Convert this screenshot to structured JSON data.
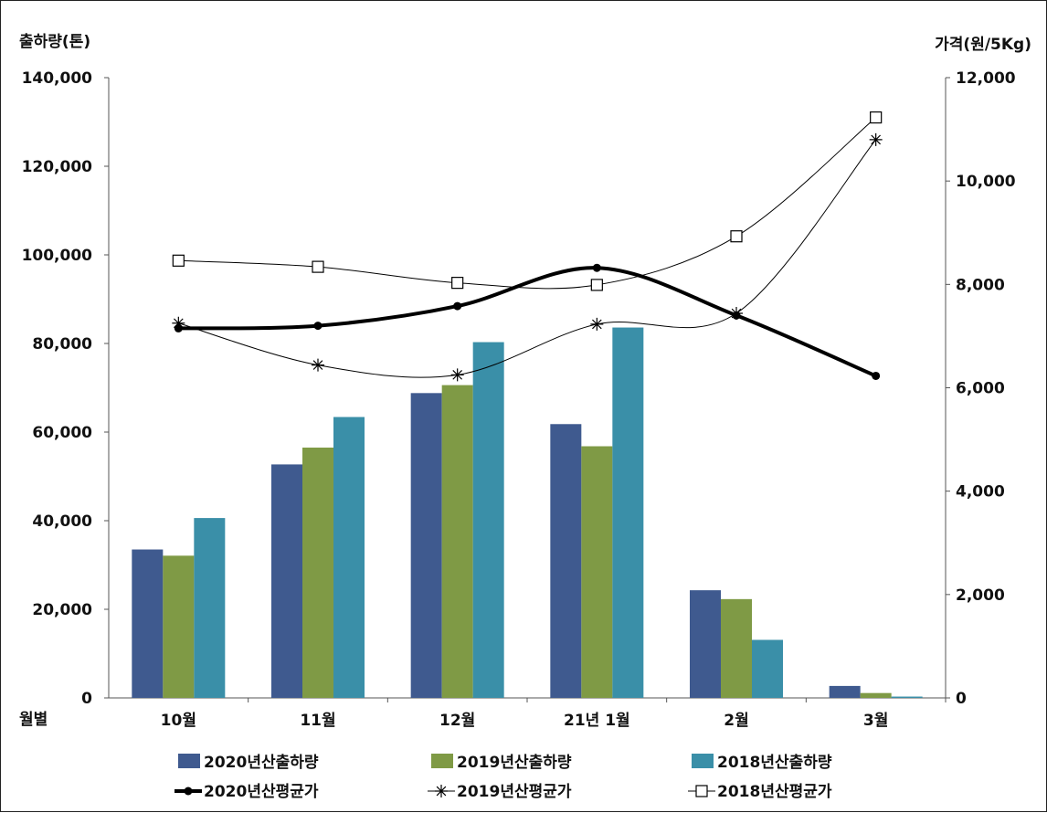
{
  "chart_data": {
    "type": "bar",
    "categories": [
      "10월",
      "11월",
      "12월",
      "21년 1월",
      "2월",
      "3월"
    ],
    "x_axis_label": "월별",
    "y_left": {
      "label": "출하량(톤)",
      "ylim": [
        0,
        140000
      ],
      "ticks": [
        "0",
        "20,000",
        "40,000",
        "60,000",
        "80,000",
        "100,000",
        "120,000",
        "140,000"
      ],
      "tick_values": [
        0,
        20000,
        40000,
        60000,
        80000,
        100000,
        120000,
        140000
      ]
    },
    "y_right": {
      "label": "가격(원/5Kg)",
      "ylim": [
        0,
        12000
      ],
      "ticks": [
        "0",
        "2,000",
        "4,000",
        "6,000",
        "8,000",
        "10,000",
        "12,000"
      ],
      "tick_values": [
        0,
        2000,
        4000,
        6000,
        8000,
        10000,
        12000
      ]
    },
    "bar_series": [
      {
        "name": "2020년산출하량",
        "color": "#3f5a8f",
        "values": [
          33500,
          52700,
          68800,
          61800,
          24300,
          2700
        ]
      },
      {
        "name": "2019년산출하량",
        "color": "#7f9a45",
        "values": [
          32100,
          56500,
          70600,
          56800,
          22300,
          1100
        ]
      },
      {
        "name": "2018년산출하량",
        "color": "#3a8fa8",
        "values": [
          40600,
          63400,
          80300,
          83600,
          13100,
          300
        ]
      }
    ],
    "line_series": [
      {
        "name": "2020년산평균가",
        "axis": "right",
        "marker": "dot",
        "color": "#000000",
        "values": [
          7150,
          7200,
          7580,
          8320,
          7400,
          6230
        ]
      },
      {
        "name": "2019년산평균가",
        "axis": "right",
        "marker": "star",
        "color": "#000000",
        "values": [
          7250,
          6440,
          6250,
          7230,
          7440,
          10800
        ]
      },
      {
        "name": "2018년산평균가",
        "axis": "right",
        "marker": "square",
        "color": "#000000",
        "values": [
          8460,
          8340,
          8030,
          7990,
          8930,
          11230
        ]
      }
    ],
    "legend_position": "bottom",
    "grid": false
  }
}
